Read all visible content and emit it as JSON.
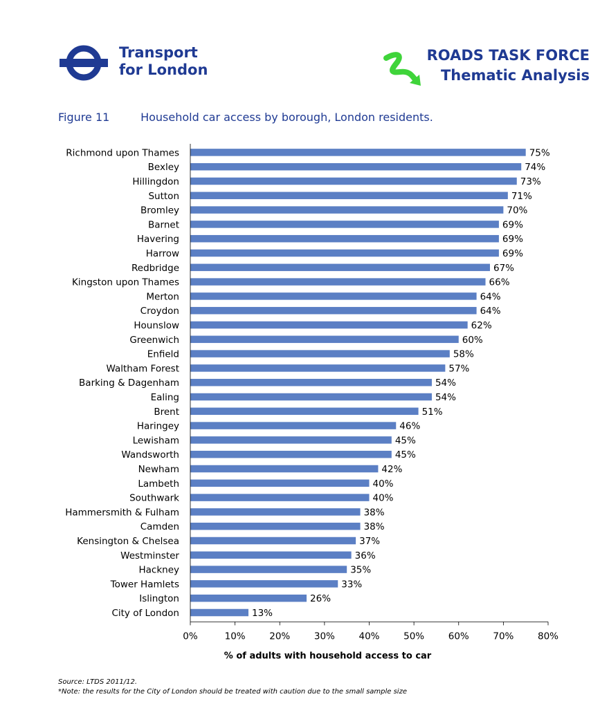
{
  "header": {
    "logo_line1": "Transport",
    "logo_line2": "for London",
    "task_force_line1": "ROADS TASK FORCE",
    "task_force_line2": "Thematic Analysis"
  },
  "figure": {
    "number": "Figure 11",
    "caption": "Household car access by borough, London residents."
  },
  "chart_data": {
    "type": "bar",
    "orientation": "horizontal",
    "categories": [
      "Richmond upon Thames",
      "Bexley",
      "Hillingdon",
      "Sutton",
      "Bromley",
      "Barnet",
      "Havering",
      "Harrow",
      "Redbridge",
      "Kingston upon Thames",
      "Merton",
      "Croydon",
      "Hounslow",
      "Greenwich",
      "Enfield",
      "Waltham Forest",
      "Barking & Dagenham",
      "Ealing",
      "Brent",
      "Haringey",
      "Lewisham",
      "Wandsworth",
      "Newham",
      "Lambeth",
      "Southwark",
      "Hammersmith & Fulham",
      "Camden",
      "Kensington & Chelsea",
      "Westminster",
      "Hackney",
      "Tower Hamlets",
      "Islington",
      "City of London"
    ],
    "values": [
      75,
      74,
      73,
      71,
      70,
      69,
      69,
      69,
      67,
      66,
      64,
      64,
      62,
      60,
      58,
      57,
      54,
      54,
      51,
      46,
      45,
      45,
      42,
      40,
      40,
      38,
      38,
      37,
      36,
      35,
      33,
      26,
      13
    ],
    "data_labels": [
      "75%",
      "74%",
      "73%",
      "71%",
      "70%",
      "69%",
      "69%",
      "69%",
      "67%",
      "66%",
      "64%",
      "64%",
      "62%",
      "60%",
      "58%",
      "57%",
      "54%",
      "54%",
      "51%",
      "46%",
      "45%",
      "45%",
      "42%",
      "40%",
      "40%",
      "38%",
      "38%",
      "37%",
      "36%",
      "35%",
      "33%",
      "26%",
      "13%"
    ],
    "xlabel": "% of adults with household access to car",
    "xlim": [
      0,
      80
    ],
    "xticks": [
      "0%",
      "10%",
      "20%",
      "30%",
      "40%",
      "50%",
      "60%",
      "70%",
      "80%"
    ],
    "grid": false,
    "legend": "none",
    "bar_color": "#5b7fc4"
  },
  "footer": {
    "source": "Source: LTDS 2011/12.",
    "note": "*Note: the results for the City of London should be treated with caution due to the small sample size"
  }
}
